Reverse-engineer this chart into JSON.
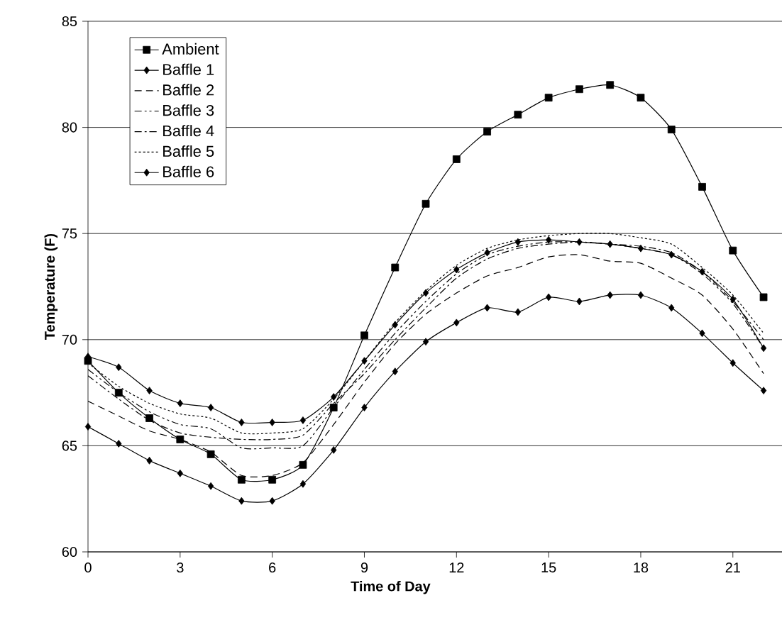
{
  "chart_data": {
    "type": "line",
    "xlabel": "Time of Day",
    "ylabel": "Temperature (F)",
    "x": [
      0,
      1,
      2,
      3,
      4,
      5,
      6,
      7,
      8,
      9,
      10,
      11,
      12,
      13,
      14,
      15,
      16,
      17,
      18,
      19,
      20,
      21,
      22
    ],
    "xlim": [
      0,
      22.6
    ],
    "xticks": [
      0,
      3,
      6,
      9,
      12,
      15,
      18,
      21
    ],
    "ylim": [
      60,
      85
    ],
    "yticks": [
      60,
      65,
      70,
      75,
      80,
      85
    ],
    "grid": "y",
    "legend": "top left",
    "series": [
      {
        "name": "Ambient",
        "color": "#000000",
        "marker": "square",
        "line_style": "solid",
        "values": [
          69.0,
          67.5,
          66.3,
          65.3,
          64.6,
          63.4,
          63.4,
          64.1,
          66.8,
          70.2,
          73.4,
          76.4,
          78.5,
          79.8,
          80.6,
          81.4,
          81.8,
          82.0,
          81.4,
          79.9,
          77.2,
          74.2,
          72.0
        ]
      },
      {
        "name": "Baffle 1",
        "color": "#000000",
        "marker": "diamond",
        "line_style": "solid",
        "values": [
          65.9,
          65.1,
          64.3,
          63.7,
          63.1,
          62.4,
          62.4,
          63.2,
          64.8,
          66.8,
          68.5,
          69.9,
          70.8,
          71.5,
          71.3,
          72.0,
          71.8,
          72.1,
          72.1,
          71.5,
          70.3,
          68.9,
          67.6
        ]
      },
      {
        "name": "Baffle 2",
        "color": "#000000",
        "marker": "none",
        "line_style": "dashed",
        "values": [
          67.1,
          66.4,
          65.7,
          65.3,
          64.7,
          63.6,
          63.6,
          64.2,
          66.0,
          68.0,
          69.8,
          71.2,
          72.2,
          73.0,
          73.4,
          73.9,
          74.0,
          73.7,
          73.6,
          72.9,
          72.1,
          70.5,
          68.4
        ]
      },
      {
        "name": "Baffle 3",
        "color": "#000000",
        "marker": "none",
        "line_style": "dashdotdot",
        "values": [
          68.6,
          67.5,
          66.6,
          66.0,
          65.8,
          64.9,
          64.9,
          65.0,
          66.8,
          68.6,
          70.3,
          71.8,
          73.1,
          74.0,
          74.4,
          74.6,
          74.6,
          74.5,
          74.3,
          74.0,
          73.1,
          71.7,
          69.6
        ]
      },
      {
        "name": "Baffle 4",
        "color": "#000000",
        "marker": "none",
        "line_style": "dashdot",
        "values": [
          68.3,
          67.2,
          66.2,
          65.6,
          65.4,
          65.3,
          65.3,
          65.5,
          67.0,
          68.4,
          70.0,
          71.5,
          72.9,
          73.8,
          74.3,
          74.5,
          74.6,
          74.5,
          74.4,
          74.1,
          73.2,
          71.8,
          70.0
        ]
      },
      {
        "name": "Baffle 5",
        "color": "#000000",
        "marker": "none",
        "line_style": "dotted",
        "values": [
          68.9,
          67.8,
          67.0,
          66.5,
          66.3,
          65.6,
          65.6,
          65.8,
          67.2,
          69.0,
          70.8,
          72.3,
          73.5,
          74.3,
          74.7,
          74.9,
          75.0,
          75.0,
          74.8,
          74.5,
          73.4,
          72.1,
          70.3
        ]
      },
      {
        "name": "Baffle 6",
        "color": "#000000",
        "marker": "diamond",
        "line_style": "solid",
        "values": [
          69.2,
          68.7,
          67.6,
          67.0,
          66.8,
          66.1,
          66.1,
          66.2,
          67.3,
          69.0,
          70.7,
          72.2,
          73.3,
          74.1,
          74.6,
          74.7,
          74.6,
          74.5,
          74.3,
          74.0,
          73.2,
          71.9,
          69.6
        ]
      }
    ]
  }
}
